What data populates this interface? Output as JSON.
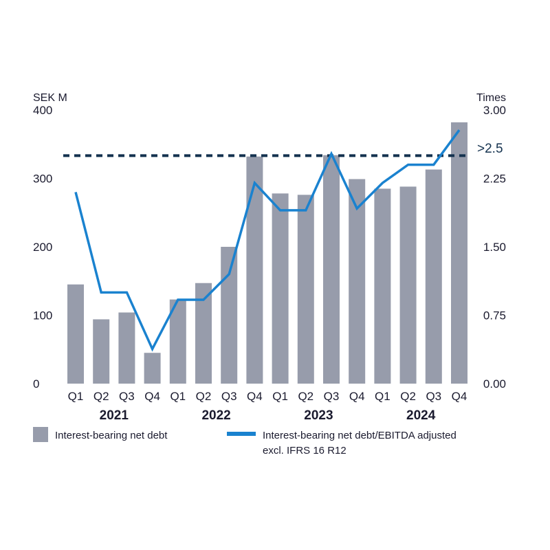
{
  "chart_data": {
    "type": "bar",
    "left_axis": {
      "unit": "SEK M",
      "ticks": [
        "400",
        "300",
        "200",
        "100",
        "0"
      ],
      "range": [
        0,
        400
      ]
    },
    "right_axis": {
      "unit": "Times",
      "ticks": [
        "3.00",
        "2.25",
        "1.50",
        "0.75",
        "0.00"
      ],
      "range": [
        0,
        3
      ]
    },
    "categories": [
      "Q1",
      "Q2",
      "Q3",
      "Q4",
      "Q1",
      "Q2",
      "Q3",
      "Q4",
      "Q1",
      "Q2",
      "Q3",
      "Q4",
      "Q1",
      "Q2",
      "Q3",
      "Q4"
    ],
    "years": [
      "2021",
      "2022",
      "2023",
      "2024"
    ],
    "series": [
      {
        "name": "Interest-bearing net debt",
        "type": "bar",
        "axis": "left",
        "color": "#979cab",
        "values": [
          145,
          94,
          104,
          45,
          123,
          147,
          200,
          332,
          278,
          276,
          334,
          299,
          285,
          288,
          313,
          382
        ]
      },
      {
        "name": "Interest-bearing net debt/EBITDA adjusted excl. IFRS 16 R12",
        "type": "line",
        "axis": "right",
        "color": "#1a82cf",
        "values": [
          2.1,
          1.0,
          1.0,
          0.38,
          0.92,
          0.92,
          1.2,
          2.2,
          1.9,
          1.9,
          2.52,
          1.92,
          2.2,
          2.4,
          2.4,
          2.78
        ]
      }
    ],
    "threshold": {
      "value": 2.5,
      "label": ">2.5",
      "color": "#14324f",
      "style": "dashed"
    },
    "legend": {
      "bar_label": "Interest-bearing net debt",
      "line_label_1": "Interest-bearing net debt/EBITDA adjusted",
      "line_label_2": "excl. IFRS 16 R12"
    }
  }
}
